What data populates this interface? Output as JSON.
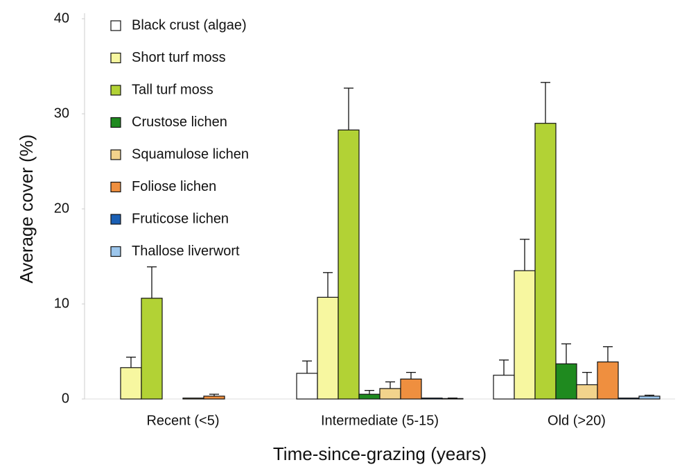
{
  "chart_data": {
    "type": "bar",
    "xlabel": "Time-since-grazing (years)",
    "ylabel": "Average cover (%)",
    "categories": [
      "Recent (<5)",
      "Intermediate (5-15)",
      "Old (>20)"
    ],
    "ylim": [
      0,
      40
    ],
    "yticks": [
      0,
      10,
      20,
      30,
      40
    ],
    "grid": false,
    "legend": "upper left",
    "series": [
      {
        "name": "Black crust (algae)",
        "color": "#ffffff",
        "values": [
          0,
          2.7,
          2.5
        ],
        "errors": [
          0,
          1.3,
          1.6
        ]
      },
      {
        "name": "Short turf moss",
        "color": "#f7f7a0",
        "values": [
          3.3,
          10.7,
          13.5
        ],
        "errors": [
          1.1,
          2.6,
          3.3
        ]
      },
      {
        "name": "Tall turf moss",
        "color": "#b2d235",
        "values": [
          10.6,
          28.3,
          29
        ],
        "errors": [
          3.3,
          4.4,
          4.3
        ]
      },
      {
        "name": "Crustose lichen",
        "color": "#1f8a1f",
        "values": [
          0,
          0.5,
          3.7
        ],
        "errors": [
          0,
          0.4,
          2.1
        ]
      },
      {
        "name": "Squamulose lichen",
        "color": "#f2d38c",
        "values": [
          0.1,
          1.1,
          1.5
        ],
        "errors": [
          0,
          0.7,
          1.3
        ]
      },
      {
        "name": "Foliose lichen",
        "color": "#ef8f3f",
        "values": [
          0.3,
          2.1,
          3.9
        ],
        "errors": [
          0.2,
          0.7,
          1.6
        ]
      },
      {
        "name": "Fruticose lichen",
        "color": "#1a5fb4",
        "values": [
          0,
          0.1,
          0.1
        ],
        "errors": [
          0,
          0,
          0
        ]
      },
      {
        "name": "Thallose liverwort",
        "color": "#9cc6ec",
        "values": [
          0,
          0.05,
          0.3
        ],
        "errors": [
          0,
          0.05,
          0.1
        ]
      }
    ]
  }
}
